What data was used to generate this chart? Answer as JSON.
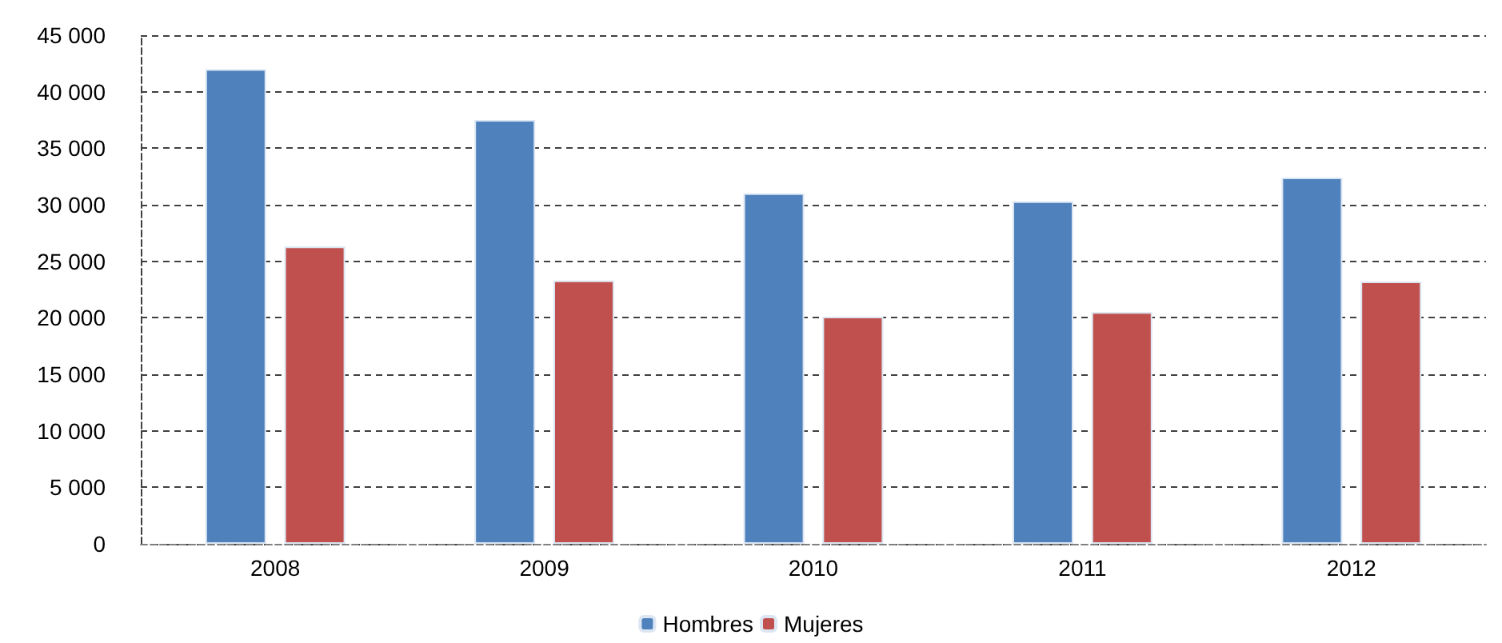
{
  "chart_data": {
    "type": "bar",
    "categories": [
      "2008",
      "2009",
      "2010",
      "2011",
      "2012"
    ],
    "series": [
      {
        "name": "Hombres",
        "color": "#4f81bd",
        "values": [
          42000,
          37500,
          31000,
          30300,
          32400
        ]
      },
      {
        "name": "Mujeres",
        "color": "#c0504d",
        "values": [
          26300,
          23300,
          20100,
          20500,
          23200
        ]
      }
    ],
    "ylim": [
      0,
      45000
    ],
    "yticks": [
      0,
      {
        "value": 5000,
        "label": "5 000"
      },
      {
        "value": 10000,
        "label": "10 000"
      },
      {
        "value": 15000,
        "label": "15 000"
      },
      {
        "value": 20000,
        "label": "20 000"
      },
      {
        "value": 25000,
        "label": "25 000"
      },
      {
        "value": 30000,
        "label": "30 000"
      },
      {
        "value": 35000,
        "label": "35 000"
      },
      {
        "value": 40000,
        "label": "40 000"
      },
      {
        "value": 45000,
        "label": "45 000"
      }
    ],
    "grid": "y",
    "legend": "bottom"
  }
}
